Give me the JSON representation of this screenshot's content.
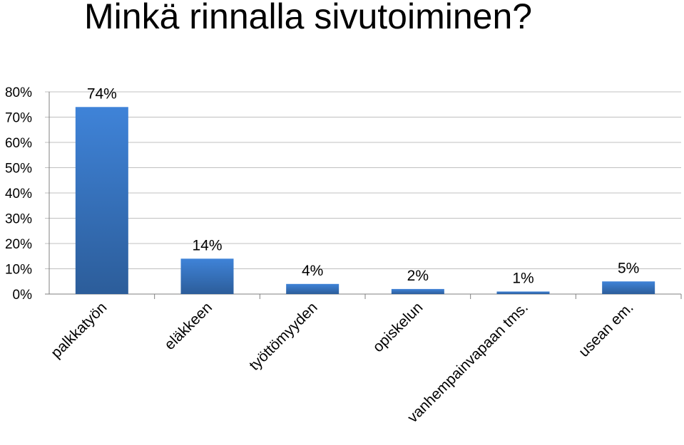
{
  "chart_data": {
    "type": "bar",
    "title": "Minkä rinnalla sivutoiminen?",
    "categories": [
      "palkkatyön",
      "eläkkeen",
      "työttömyyden",
      "opiskelun",
      "vanhempainvapaan tms.",
      "usean em."
    ],
    "values": [
      74,
      14,
      4,
      2,
      1,
      5
    ],
    "data_labels": [
      "74%",
      "14%",
      "4%",
      "2%",
      "1%",
      "5%"
    ],
    "ylim": [
      0,
      80
    ],
    "yticks": [
      0,
      10,
      20,
      30,
      40,
      50,
      60,
      70,
      80
    ],
    "ytick_labels": [
      "0%",
      "10%",
      "20%",
      "30%",
      "40%",
      "50%",
      "60%",
      "70%",
      "80%"
    ],
    "grid": true,
    "legend": "none",
    "colors": {
      "bar_top": "#3f83d8",
      "bar_bottom": "#2c5d9a",
      "grid": "#c0c0c0",
      "axis": "#808080"
    }
  }
}
